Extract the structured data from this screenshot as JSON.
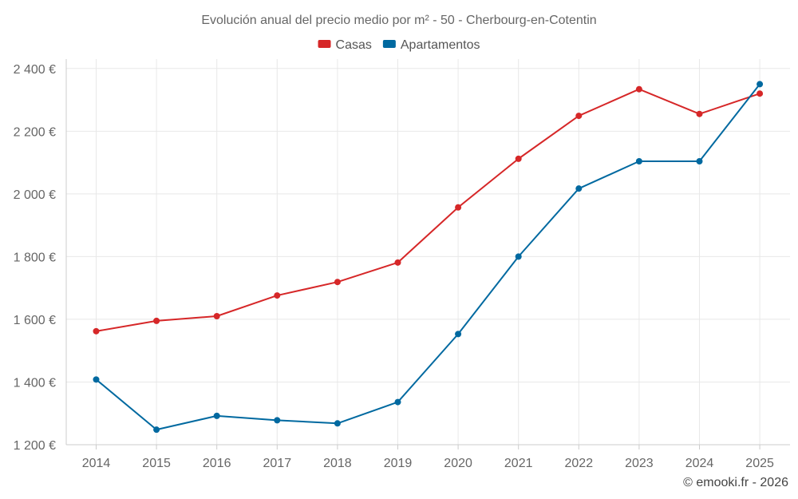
{
  "chart_data": {
    "type": "line",
    "title": "Evolución anual del precio medio por m² - 50 - Cherbourg-en-Cotentin",
    "categories": [
      "2014",
      "2015",
      "2016",
      "2017",
      "2018",
      "2019",
      "2020",
      "2021",
      "2022",
      "2023",
      "2024",
      "2025"
    ],
    "series": [
      {
        "name": "Casas",
        "color": "#d62728",
        "values": [
          1562,
          1595,
          1610,
          1676,
          1719,
          1781,
          1957,
          2112,
          2249,
          2334,
          2255,
          2320
        ]
      },
      {
        "name": "Apartamentos",
        "color": "#0069a0",
        "values": [
          1408,
          1248,
          1292,
          1278,
          1268,
          1336,
          1553,
          1800,
          2017,
          2104,
          2104,
          2350
        ]
      }
    ],
    "yticks": [
      1200,
      1400,
      1600,
      1800,
      2000,
      2200,
      2400
    ],
    "ytick_labels": [
      "1 200 €",
      "1 400 €",
      "1 600 €",
      "1 800 €",
      "2 000 €",
      "2 200 €",
      "2 400 €"
    ],
    "ylim": [
      1200,
      2430
    ],
    "xlabel": "",
    "ylabel": "",
    "grid": true,
    "legend_position": "top-center"
  },
  "credit": "© emooki.fr - 2026"
}
